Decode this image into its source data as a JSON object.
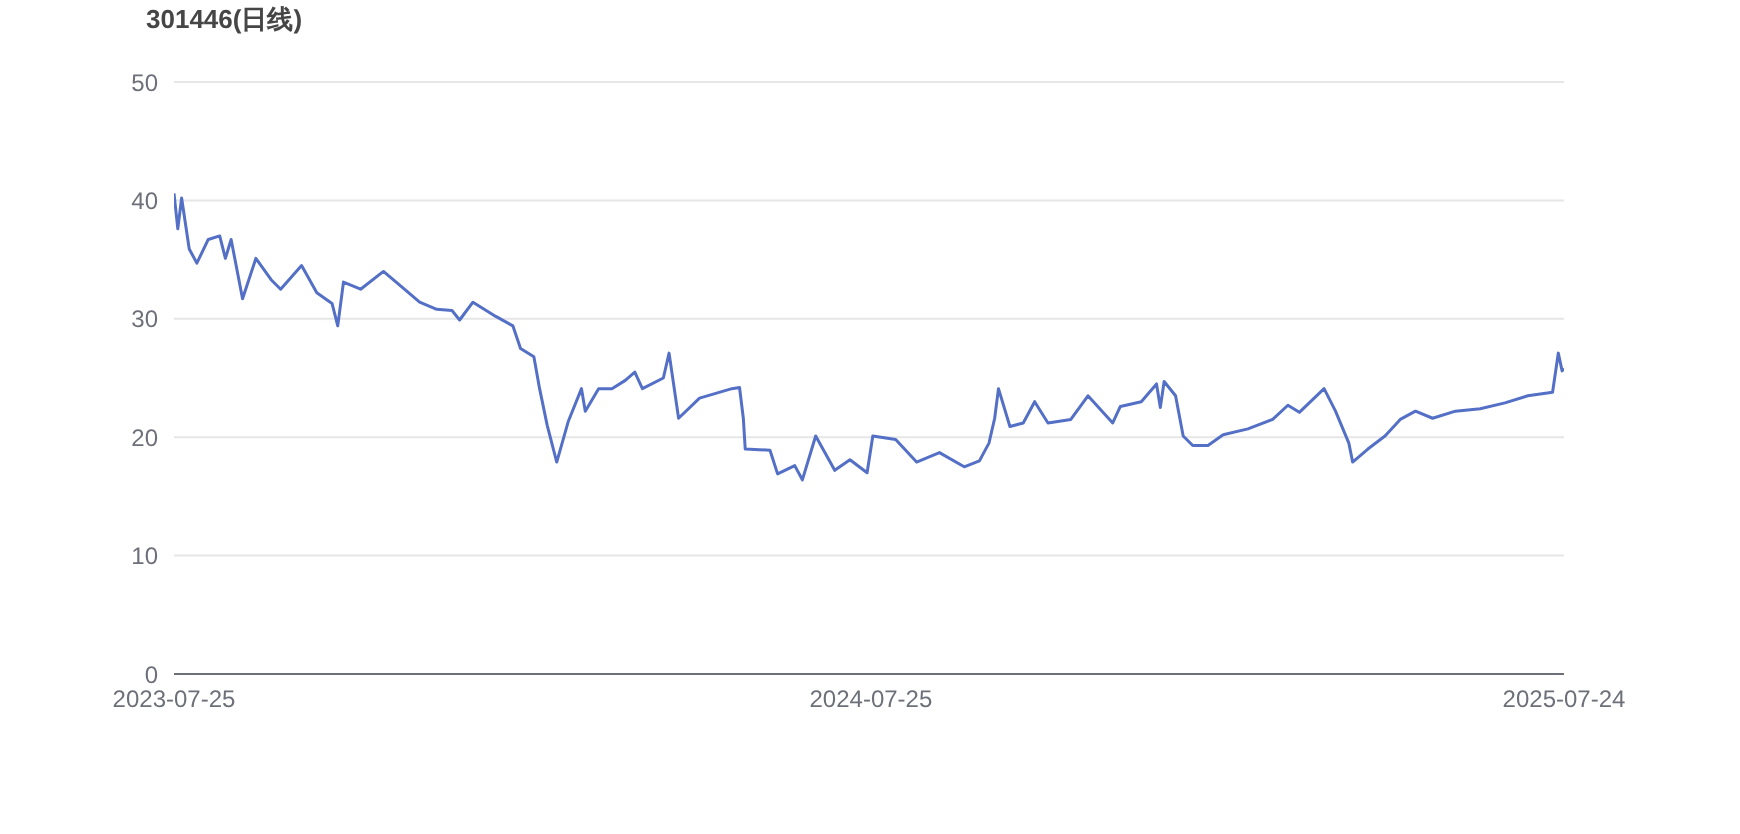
{
  "chart_data": {
    "type": "line",
    "title": "301446(日线)",
    "x": [
      "2023-07-25",
      "2023-07-27",
      "2023-07-29",
      "2023-08-02",
      "2023-08-06",
      "2023-08-12",
      "2023-08-18",
      "2023-08-21",
      "2023-08-24",
      "2023-08-30",
      "2023-09-06",
      "2023-09-14",
      "2023-09-19",
      "2023-09-30",
      "2023-10-08",
      "2023-10-16",
      "2023-10-19",
      "2023-10-22",
      "2023-10-31",
      "2023-11-12",
      "2023-11-23",
      "2023-12-01",
      "2023-12-10",
      "2023-12-18",
      "2023-12-22",
      "2023-12-29",
      "2024-01-10",
      "2024-01-19",
      "2024-01-23",
      "2024-01-30",
      "2024-02-02",
      "2024-02-06",
      "2024-02-11",
      "2024-02-17",
      "2024-02-24",
      "2024-02-26",
      "2024-03-04",
      "2024-03-11",
      "2024-03-18",
      "2024-03-23",
      "2024-03-27",
      "2024-04-07",
      "2024-04-10",
      "2024-04-15",
      "2024-04-26",
      "2024-05-13",
      "2024-05-17",
      "2024-05-19",
      "2024-05-20",
      "2024-06-02",
      "2024-06-06",
      "2024-06-15",
      "2024-06-19",
      "2024-06-26",
      "2024-07-06",
      "2024-07-14",
      "2024-07-23",
      "2024-07-26",
      "2024-08-07",
      "2024-08-18",
      "2024-08-30",
      "2024-09-12",
      "2024-09-20",
      "2024-09-25",
      "2024-09-28",
      "2024-09-30",
      "2024-10-06",
      "2024-10-13",
      "2024-10-19",
      "2024-10-26",
      "2024-11-07",
      "2024-11-16",
      "2024-11-29",
      "2024-12-03",
      "2024-12-14",
      "2024-12-22",
      "2024-12-24",
      "2024-12-26",
      "2025-01-01",
      "2025-01-05",
      "2025-01-10",
      "2025-01-18",
      "2025-01-26",
      "2025-02-08",
      "2025-02-21",
      "2025-03-01",
      "2025-03-07",
      "2025-03-20",
      "2025-03-26",
      "2025-04-02",
      "2025-04-04",
      "2025-04-12",
      "2025-04-21",
      "2025-04-29",
      "2025-05-07",
      "2025-05-16",
      "2025-05-28",
      "2025-06-10",
      "2025-06-23",
      "2025-07-05",
      "2025-07-18",
      "2025-07-21",
      "2025-07-23",
      "2025-07-24"
    ],
    "series": [
      {
        "color": "#5470c6",
        "values": [
          40.6,
          37.6,
          40.2,
          35.9,
          34.7,
          36.7,
          37.0,
          35.1,
          36.7,
          31.7,
          35.1,
          33.3,
          32.5,
          34.5,
          32.2,
          31.3,
          29.4,
          33.1,
          32.5,
          34.0,
          32.5,
          31.4,
          30.8,
          30.7,
          29.9,
          31.4,
          30.2,
          29.4,
          27.5,
          26.8,
          24.1,
          21.0,
          17.9,
          21.3,
          24.1,
          22.2,
          24.1,
          24.1,
          24.8,
          25.5,
          24.1,
          25.0,
          27.1,
          21.6,
          23.3,
          24.1,
          24.2,
          21.6,
          19.0,
          18.9,
          16.9,
          17.6,
          16.4,
          20.1,
          17.2,
          18.1,
          17.0,
          20.1,
          19.8,
          17.9,
          18.7,
          17.5,
          18.0,
          19.5,
          21.6,
          24.1,
          20.9,
          21.2,
          23.0,
          21.2,
          21.5,
          23.5,
          21.2,
          22.6,
          23.0,
          24.5,
          22.5,
          24.7,
          23.5,
          20.1,
          19.3,
          19.3,
          20.2,
          20.7,
          21.5,
          22.7,
          22.1,
          24.1,
          22.2,
          19.5,
          17.9,
          19.0,
          20.1,
          21.5,
          22.2,
          21.6,
          22.2,
          22.4,
          22.9,
          23.5,
          23.8,
          27.1,
          25.6,
          25.8
        ]
      }
    ],
    "xlim": [
      "2023-07-25",
      "2025-07-24"
    ],
    "xticks": [
      "2023-07-25",
      "2024-07-25",
      "2025-07-24"
    ],
    "ylim": [
      0,
      50
    ],
    "yticks": [
      0,
      10,
      20,
      30,
      40,
      50
    ],
    "grid": "y",
    "legend": false,
    "marker": "none",
    "line_style": "solid"
  }
}
